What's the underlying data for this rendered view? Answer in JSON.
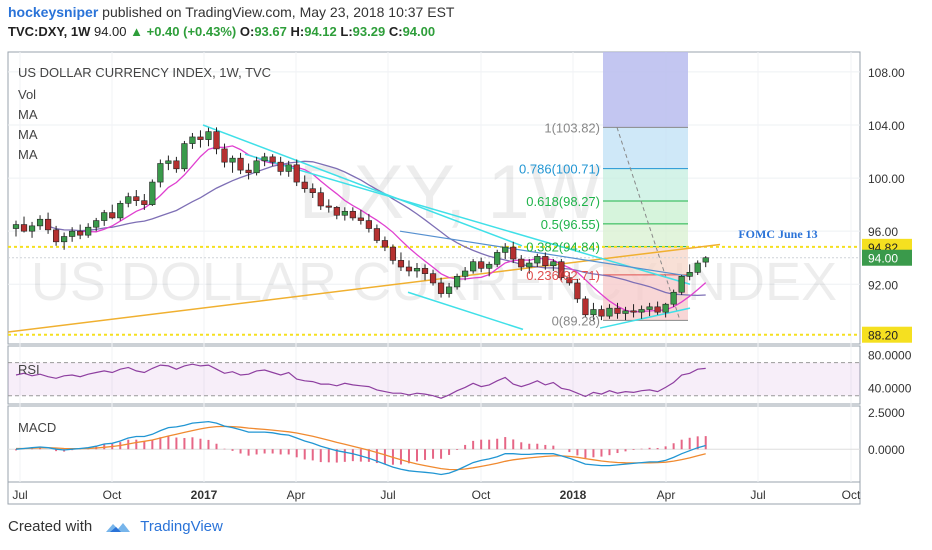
{
  "header": {
    "author": "hockeysniper",
    "published_text": "published on TradingView.com, May 23, 2018 10:37 EST",
    "symbol": "TVC:DXY, 1W",
    "price": "94.00",
    "change": "▲ +0.40 (+0.43%)",
    "open_label": "O:",
    "open": "93.67",
    "high_label": "H:",
    "high": "94.12",
    "low_label": "L:",
    "low": "93.29",
    "close_label": "C:",
    "close": "94.00"
  },
  "legend": {
    "title": "US DOLLAR CURRENCY INDEX, 1W, TVC",
    "items": [
      "Vol",
      "MA",
      "MA",
      "MA"
    ]
  },
  "watermark": {
    "line1": "DXY, 1W",
    "line2": "US DOLLAR CURRENCY INDEX"
  },
  "footer": {
    "created_with": "Created with",
    "brand": "TradingView"
  },
  "colors": {
    "up": "#3a9a4b",
    "down": "#b53030",
    "ma_fast": "#e040d0",
    "ma_mid": "#7e6fb5",
    "ma_slow": "#f0b030",
    "channel": "#40e0e8",
    "trendline": "#5590d0",
    "hline": "#f5e020",
    "fib_blue": "#2196d3",
    "fib_green": "#1fb34a",
    "fib_red": "#e05050",
    "rsi": "#8e3fa0",
    "macd": "#2196d3",
    "signal": "#f08a30"
  },
  "chart_data": {
    "type": "candlestick",
    "title": "US DOLLAR CURRENCY INDEX, 1W, TVC",
    "x_ticks": [
      "Jul",
      "Oct",
      "2017",
      "Apr",
      "Jul",
      "Oct",
      "2018",
      "Apr",
      "Jul",
      "Oct"
    ],
    "y_ticks": [
      "108.00",
      "104.00",
      "100.00",
      "96.00",
      "92.00"
    ],
    "ylim": [
      87.5,
      109.5
    ],
    "price_labels": [
      {
        "text": "94.82",
        "value": 94.82,
        "style": "hline"
      },
      {
        "text": "94.00",
        "value": 94.0,
        "style": "last"
      },
      {
        "text": "88.20",
        "value": 88.2,
        "style": "hline"
      }
    ],
    "horizontal_lines": [
      94.82,
      88.2
    ],
    "annotation": {
      "text": "FOMC June 13",
      "value": 95.8
    },
    "fibonacci": [
      {
        "ratio": "1",
        "value": 103.82,
        "label": "1(103.82)"
      },
      {
        "ratio": "0.786",
        "value": 100.71,
        "label": "0.786(100.71)"
      },
      {
        "ratio": "0.618",
        "value": 98.27,
        "label": "0.618(98.27)"
      },
      {
        "ratio": "0.5",
        "value": 96.55,
        "label": "0.5(96.55)"
      },
      {
        "ratio": "0.382",
        "value": 94.84,
        "label": "0.382(94.84)"
      },
      {
        "ratio": "0.236",
        "value": 92.71,
        "label": "0.236(92.71)"
      },
      {
        "ratio": "0",
        "value": 89.28,
        "label": "0(89.28)"
      }
    ],
    "candles": [
      [
        96.2,
        96.8,
        95.6,
        96.5
      ],
      [
        96.5,
        97.1,
        95.9,
        96.0
      ],
      [
        96.0,
        96.7,
        95.5,
        96.4
      ],
      [
        96.4,
        97.2,
        96.1,
        96.9
      ],
      [
        96.9,
        97.4,
        95.8,
        96.1
      ],
      [
        96.1,
        96.4,
        94.9,
        95.2
      ],
      [
        95.2,
        95.9,
        94.6,
        95.6
      ],
      [
        95.6,
        96.3,
        95.2,
        96.0
      ],
      [
        96.0,
        96.5,
        95.4,
        95.7
      ],
      [
        95.7,
        96.6,
        95.5,
        96.3
      ],
      [
        96.3,
        97.0,
        96.0,
        96.8
      ],
      [
        96.8,
        97.6,
        96.4,
        97.4
      ],
      [
        97.4,
        98.0,
        96.9,
        97.0
      ],
      [
        97.0,
        98.3,
        96.8,
        98.1
      ],
      [
        98.1,
        98.9,
        97.8,
        98.6
      ],
      [
        98.6,
        99.1,
        97.9,
        98.3
      ],
      [
        98.3,
        98.8,
        97.6,
        98.0
      ],
      [
        98.0,
        99.9,
        97.9,
        99.7
      ],
      [
        99.7,
        101.4,
        99.3,
        101.1
      ],
      [
        101.1,
        101.7,
        100.6,
        101.3
      ],
      [
        101.3,
        101.6,
        100.4,
        100.7
      ],
      [
        100.7,
        102.8,
        100.5,
        102.6
      ],
      [
        102.6,
        103.4,
        102.2,
        103.1
      ],
      [
        103.1,
        103.6,
        102.3,
        102.9
      ],
      [
        102.9,
        103.8,
        102.4,
        103.5
      ],
      [
        103.5,
        103.82,
        101.8,
        102.2
      ],
      [
        102.2,
        102.6,
        100.8,
        101.2
      ],
      [
        101.2,
        101.7,
        100.4,
        101.5
      ],
      [
        101.5,
        101.9,
        100.3,
        100.6
      ],
      [
        100.6,
        101.1,
        99.9,
        100.4
      ],
      [
        100.4,
        101.6,
        100.2,
        101.3
      ],
      [
        101.3,
        101.9,
        100.9,
        101.6
      ],
      [
        101.6,
        101.8,
        100.9,
        101.2
      ],
      [
        101.2,
        101.6,
        100.2,
        100.5
      ],
      [
        100.5,
        101.3,
        100.1,
        101.0
      ],
      [
        101.0,
        101.4,
        99.4,
        99.7
      ],
      [
        99.7,
        100.2,
        98.9,
        99.2
      ],
      [
        99.2,
        99.6,
        98.5,
        98.9
      ],
      [
        98.9,
        99.3,
        97.6,
        97.9
      ],
      [
        97.9,
        98.4,
        97.4,
        97.8
      ],
      [
        97.8,
        97.9,
        96.9,
        97.2
      ],
      [
        97.2,
        97.8,
        96.8,
        97.5
      ],
      [
        97.5,
        97.8,
        96.8,
        97.0
      ],
      [
        97.0,
        97.6,
        96.5,
        96.8
      ],
      [
        96.8,
        97.3,
        95.9,
        96.2
      ],
      [
        96.2,
        96.5,
        95.1,
        95.3
      ],
      [
        95.3,
        95.6,
        94.5,
        94.8
      ],
      [
        94.8,
        95.0,
        93.5,
        93.8
      ],
      [
        93.8,
        94.4,
        93.0,
        93.3
      ],
      [
        93.3,
        93.8,
        92.6,
        93.0
      ],
      [
        93.0,
        93.6,
        92.5,
        93.2
      ],
      [
        93.2,
        93.5,
        92.3,
        92.8
      ],
      [
        92.8,
        93.1,
        91.9,
        92.1
      ],
      [
        92.1,
        92.5,
        91.0,
        91.3
      ],
      [
        91.3,
        92.1,
        91.0,
        91.8
      ],
      [
        91.8,
        92.8,
        91.6,
        92.6
      ],
      [
        92.6,
        93.3,
        92.3,
        93.0
      ],
      [
        93.0,
        93.9,
        92.8,
        93.7
      ],
      [
        93.7,
        94.0,
        92.9,
        93.2
      ],
      [
        93.2,
        93.7,
        92.6,
        93.5
      ],
      [
        93.5,
        94.6,
        93.3,
        94.4
      ],
      [
        94.4,
        95.1,
        93.9,
        94.8
      ],
      [
        94.8,
        95.2,
        93.6,
        93.9
      ],
      [
        93.9,
        94.2,
        93.0,
        93.3
      ],
      [
        93.3,
        93.9,
        92.8,
        93.6
      ],
      [
        93.6,
        94.3,
        93.3,
        94.1
      ],
      [
        94.1,
        94.4,
        93.1,
        93.4
      ],
      [
        93.4,
        93.9,
        93.0,
        93.7
      ],
      [
        93.7,
        93.9,
        92.3,
        92.5
      ],
      [
        92.5,
        92.9,
        91.9,
        92.1
      ],
      [
        92.1,
        92.4,
        90.6,
        90.9
      ],
      [
        90.9,
        91.1,
        89.5,
        89.7
      ],
      [
        89.7,
        90.6,
        89.2,
        90.1
      ],
      [
        90.1,
        90.4,
        89.3,
        89.6
      ],
      [
        89.6,
        90.5,
        89.4,
        90.2
      ],
      [
        90.2,
        90.6,
        89.4,
        89.8
      ],
      [
        89.8,
        90.3,
        89.3,
        90.0
      ],
      [
        90.0,
        90.5,
        89.5,
        89.9
      ],
      [
        89.9,
        90.4,
        89.4,
        90.1
      ],
      [
        90.1,
        90.6,
        89.6,
        90.3
      ],
      [
        90.3,
        90.7,
        89.7,
        89.9
      ],
      [
        89.9,
        90.6,
        89.5,
        90.5
      ],
      [
        90.5,
        91.6,
        90.3,
        91.4
      ],
      [
        91.4,
        92.7,
        91.2,
        92.6
      ],
      [
        92.6,
        93.5,
        92.3,
        92.9
      ],
      [
        92.9,
        93.8,
        92.7,
        93.6
      ],
      [
        93.67,
        94.12,
        93.29,
        94.0
      ]
    ],
    "rsi": {
      "name": "RSI",
      "ylim": [
        20,
        90
      ],
      "ticks": [
        "80.0000",
        "40.0000"
      ],
      "values": [
        55,
        57,
        54,
        56,
        53,
        51,
        54,
        55,
        53,
        56,
        58,
        60,
        58,
        62,
        64,
        60,
        58,
        63,
        67,
        66,
        62,
        66,
        68,
        66,
        67,
        62,
        57,
        59,
        55,
        56,
        60,
        61,
        58,
        55,
        58,
        50,
        48,
        47,
        44,
        44,
        42,
        45,
        43,
        42,
        41,
        37,
        35,
        33,
        33,
        31,
        33,
        32,
        30,
        27,
        31,
        36,
        40,
        45,
        41,
        43,
        48,
        52,
        44,
        41,
        44,
        48,
        43,
        46,
        39,
        37,
        33,
        29,
        34,
        32,
        36,
        33,
        35,
        34,
        36,
        37,
        35,
        40,
        46,
        55,
        57,
        62,
        63
      ]
    },
    "macd": {
      "name": "MACD",
      "ylim": [
        -2.2,
        2.9
      ],
      "ticks": [
        "2.5000",
        "0.0000"
      ],
      "macd": [
        0.0,
        0.05,
        0.1,
        0.15,
        0.1,
        0.0,
        -0.05,
        0.0,
        0.05,
        0.1,
        0.2,
        0.35,
        0.4,
        0.55,
        0.75,
        0.85,
        0.85,
        1.0,
        1.25,
        1.45,
        1.5,
        1.6,
        1.75,
        1.8,
        1.85,
        1.75,
        1.55,
        1.45,
        1.3,
        1.15,
        1.15,
        1.15,
        1.1,
        1.0,
        0.95,
        0.75,
        0.55,
        0.4,
        0.2,
        0.05,
        -0.1,
        -0.2,
        -0.3,
        -0.45,
        -0.6,
        -0.8,
        -1.0,
        -1.2,
        -1.35,
        -1.45,
        -1.5,
        -1.55,
        -1.6,
        -1.7,
        -1.6,
        -1.4,
        -1.15,
        -0.9,
        -0.75,
        -0.65,
        -0.5,
        -0.3,
        -0.3,
        -0.35,
        -0.35,
        -0.3,
        -0.3,
        -0.3,
        -0.45,
        -0.6,
        -0.8,
        -1.0,
        -1.05,
        -1.1,
        -1.1,
        -1.05,
        -1.0,
        -0.95,
        -0.9,
        -0.85,
        -0.85,
        -0.75,
        -0.55,
        -0.3,
        -0.1,
        0.1,
        0.25
      ],
      "signal": [
        0.05,
        0.05,
        0.07,
        0.09,
        0.1,
        0.08,
        0.05,
        0.04,
        0.04,
        0.05,
        0.08,
        0.13,
        0.18,
        0.25,
        0.35,
        0.45,
        0.53,
        0.62,
        0.75,
        0.89,
        1.01,
        1.13,
        1.25,
        1.36,
        1.46,
        1.52,
        1.53,
        1.52,
        1.48,
        1.42,
        1.37,
        1.33,
        1.28,
        1.22,
        1.17,
        1.09,
        0.98,
        0.87,
        0.74,
        0.6,
        0.46,
        0.33,
        0.2,
        0.07,
        -0.07,
        -0.22,
        -0.38,
        -0.55,
        -0.71,
        -0.86,
        -0.99,
        -1.1,
        -1.2,
        -1.3,
        -1.36,
        -1.37,
        -1.33,
        -1.25,
        -1.15,
        -1.05,
        -0.94,
        -0.81,
        -0.71,
        -0.64,
        -0.58,
        -0.53,
        -0.48,
        -0.45,
        -0.45,
        -0.48,
        -0.54,
        -0.63,
        -0.71,
        -0.79,
        -0.85,
        -0.89,
        -0.91,
        -0.92,
        -0.92,
        -0.91,
        -0.9,
        -0.87,
        -0.8,
        -0.7,
        -0.58,
        -0.44,
        -0.3
      ]
    }
  }
}
